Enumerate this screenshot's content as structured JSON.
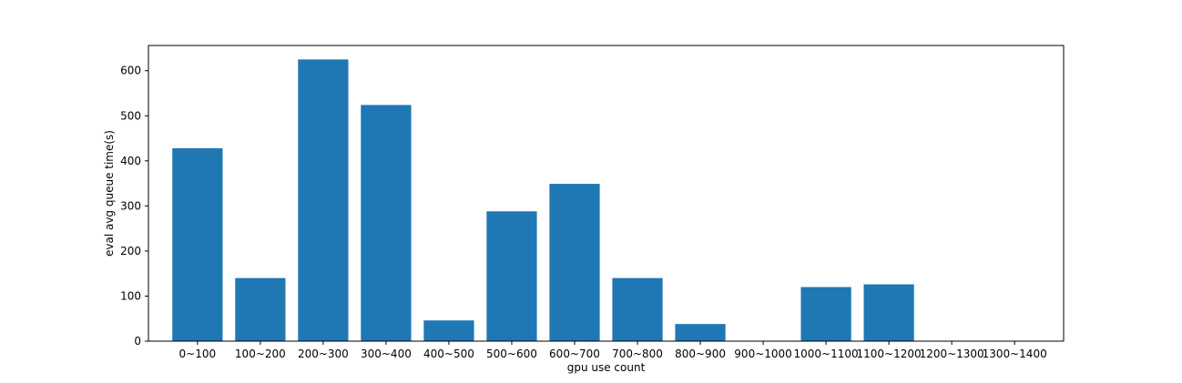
{
  "chart_data": {
    "type": "bar",
    "title": "",
    "xlabel": "gpu use count",
    "ylabel": "eval avg queue time(s)",
    "categories": [
      "0~100",
      "100~200",
      "200~300",
      "300~400",
      "400~500",
      "500~600",
      "600~700",
      "700~800",
      "800~900",
      "900~1000",
      "1000~1100",
      "1100~1200",
      "1200~1300",
      "1300~1400"
    ],
    "values": [
      428,
      140,
      625,
      524,
      46,
      288,
      349,
      140,
      38,
      0,
      120,
      126,
      0,
      0
    ],
    "ylim": [
      0,
      656
    ],
    "yticks": [
      0,
      100,
      200,
      300,
      400,
      500,
      600
    ],
    "bar_color": "#1f77b4",
    "grid": false,
    "legend": false
  }
}
